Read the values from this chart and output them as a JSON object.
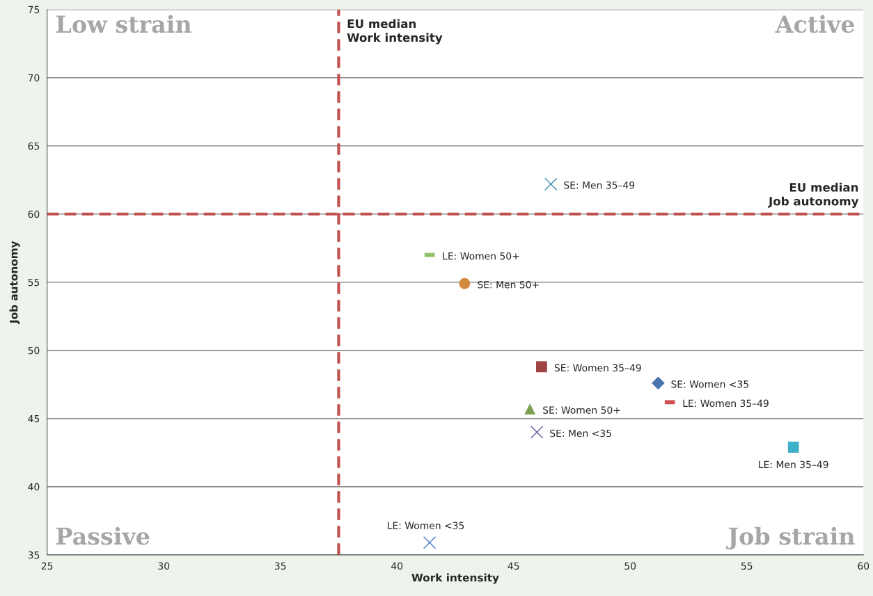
{
  "chart_data": {
    "type": "scatter",
    "xlabel": "Work intensity",
    "ylabel": "Job autonomy",
    "xlim": [
      25,
      60
    ],
    "xticks": [
      25,
      30,
      35,
      40,
      45,
      50,
      55,
      60
    ],
    "ylim": [
      35,
      75
    ],
    "yticks": [
      35,
      40,
      45,
      50,
      55,
      60,
      65,
      70,
      75
    ],
    "grid": "y",
    "series": [
      {
        "name": "SE: Men 35–49",
        "color": "#3b8fb0",
        "marker": "cross",
        "x": [
          46.6
        ],
        "values": [
          62.2
        ]
      },
      {
        "name": "LE: Women 50+",
        "color": "#92c06a",
        "x": [
          41.4
        ],
        "values": [
          57.0
        ]
      },
      {
        "name": "SE: Men 50+",
        "color": "#d48a3e",
        "marker": "circle",
        "x": [
          42.9
        ],
        "values": [
          54.9
        ]
      },
      {
        "name": "SE: Women 35–49",
        "color": "#a04545",
        "marker": "square",
        "x": [
          46.2
        ],
        "values": [
          48.8
        ]
      },
      {
        "name": "SE: Women <35",
        "color": "#4a74b0",
        "marker": "diamond",
        "x": [
          51.2
        ],
        "values": [
          47.6
        ]
      },
      {
        "name": "LE: Women 35–49",
        "color": "#d05050",
        "x": [
          51.7
        ],
        "values": [
          46.2
        ]
      },
      {
        "name": "SE: Women 50+",
        "color": "#7fa050",
        "marker": "triangle",
        "x": [
          45.7
        ],
        "values": [
          45.7
        ]
      },
      {
        "name": "SE: Men <35",
        "color": "#6b5aa0",
        "marker": "cross",
        "x": [
          46.0
        ],
        "values": [
          44.0
        ]
      },
      {
        "name": "LE: Men 35–49",
        "color": "#40b0c8",
        "marker": "square",
        "x": [
          57.0
        ],
        "values": [
          42.9
        ]
      },
      {
        "name": "LE: Women <35",
        "color": "#4a80d0",
        "marker": "cross",
        "x": [
          41.4
        ],
        "values": [
          35.9
        ]
      }
    ],
    "ref_lines": [
      {
        "axis": "x",
        "value": 37.5,
        "label": "EU median\nWork intensity",
        "color": "#c0504d",
        "line_style": "dashed"
      },
      {
        "axis": "y",
        "value": 60,
        "label": "EU median\nJob autonomy",
        "color": "#c0504d",
        "line_style": "dashed"
      }
    ],
    "annotations": [
      "Low strain",
      "Active",
      "Passive",
      "Job strain"
    ]
  }
}
